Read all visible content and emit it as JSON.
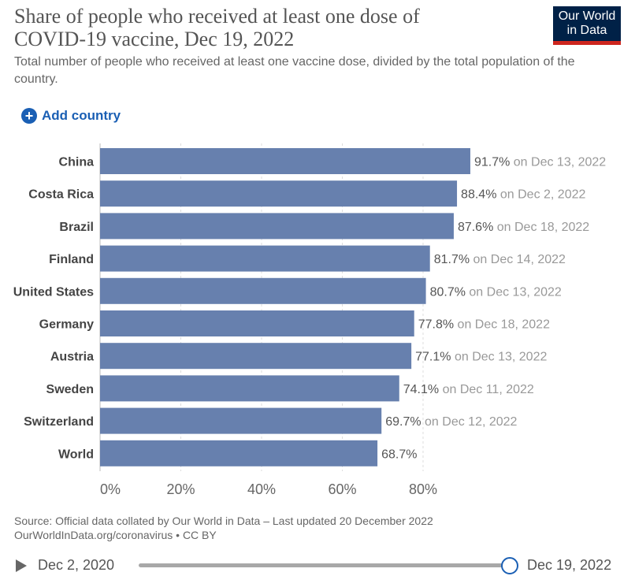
{
  "header": {
    "title": "Share of people who received at least one dose of COVID-19 vaccine, Dec 19, 2022",
    "subtitle": "Total number of people who received at least one vaccine dose, divided by the total population of the country.",
    "logo": "Our World in Data"
  },
  "controls": {
    "add_country": "Add country"
  },
  "chart_data": {
    "type": "bar",
    "orientation": "horizontal",
    "categories": [
      "China",
      "Costa Rica",
      "Brazil",
      "Finland",
      "United States",
      "Germany",
      "Austria",
      "Sweden",
      "Switzerland",
      "World"
    ],
    "values": [
      91.7,
      88.4,
      87.6,
      81.7,
      80.7,
      77.8,
      77.1,
      74.1,
      69.7,
      68.7
    ],
    "value_labels": [
      "91.7%",
      "88.4%",
      "87.6%",
      "81.7%",
      "80.7%",
      "77.8%",
      "77.1%",
      "74.1%",
      "69.7%",
      "68.7%"
    ],
    "dates": [
      "on Dec 13, 2022",
      "on Dec 2, 2022",
      "on Dec 18, 2022",
      "on Dec 14, 2022",
      "on Dec 13, 2022",
      "on Dec 18, 2022",
      "on Dec 13, 2022",
      "on Dec 11, 2022",
      "on Dec 12, 2022",
      ""
    ],
    "xticks": [
      0,
      20,
      40,
      60,
      80
    ],
    "xtick_labels": [
      "0%",
      "20%",
      "40%",
      "60%",
      "80%"
    ],
    "xlim": [
      0,
      100
    ],
    "bar_color": "#6780ae",
    "grid": true
  },
  "footer": {
    "source": "Source: Official data collated by Our World in Data – Last updated 20 December 2022",
    "link": "OurWorldInData.org/coronavirus • CC BY"
  },
  "timeline": {
    "start": "Dec 2, 2020",
    "end": "Dec 19, 2022"
  }
}
